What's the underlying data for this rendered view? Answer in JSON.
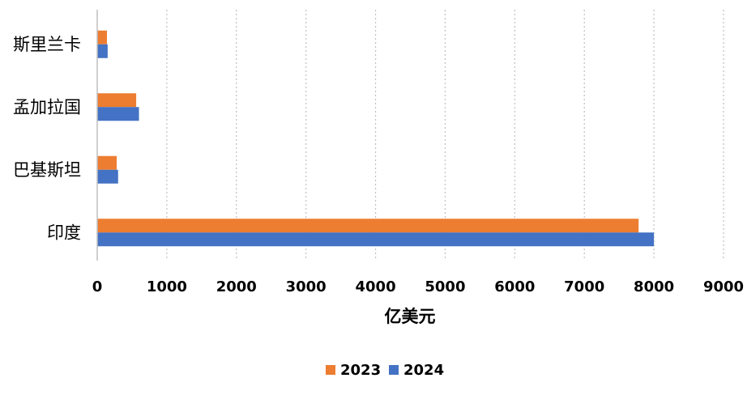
{
  "chart_data": {
    "type": "bar",
    "orientation": "horizontal",
    "categories": [
      "斯里兰卡",
      "孟加拉国",
      "巴基斯坦",
      "印度"
    ],
    "series": [
      {
        "name": "2023",
        "color": "#ED7D31",
        "values": [
          140,
          560,
          280,
          7780
        ]
      },
      {
        "name": "2024",
        "color": "#4472C4",
        "values": [
          150,
          600,
          300,
          8000
        ]
      }
    ],
    "xlabel": "亿美元",
    "ylabel": "",
    "title": "",
    "xlim": [
      0,
      9000
    ],
    "xticks": [
      0,
      1000,
      2000,
      3000,
      4000,
      5000,
      6000,
      7000,
      8000,
      9000
    ],
    "grid": "vertical dotted",
    "legend_position": "bottom"
  }
}
